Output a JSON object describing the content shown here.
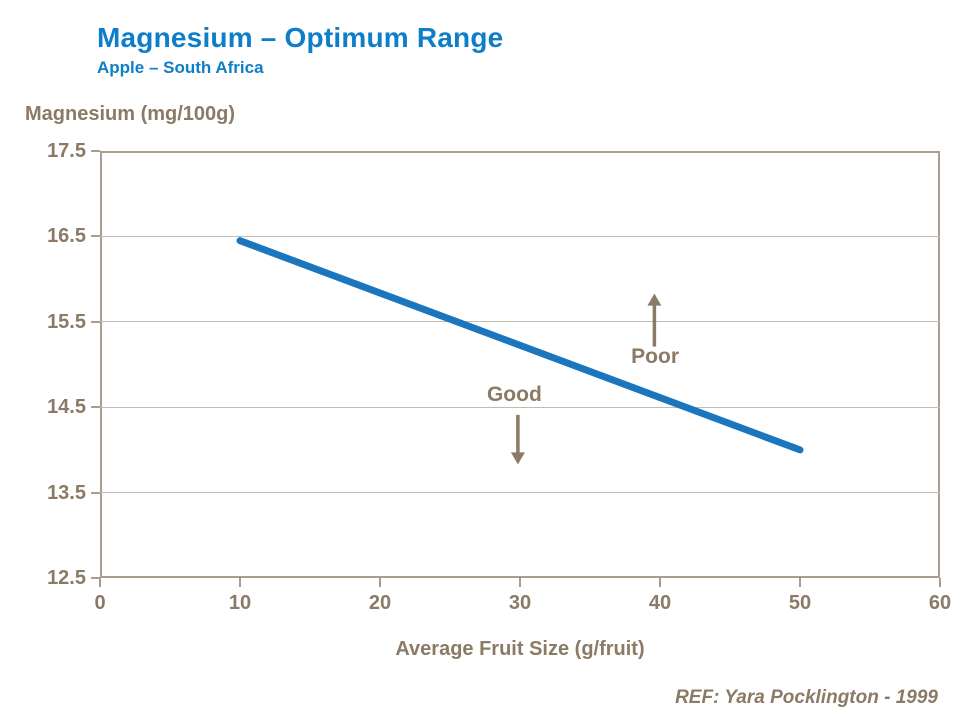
{
  "colors": {
    "title_blue": "#0e7ec8",
    "line_blue": "#1b76be",
    "taupe_text": "#8a7a66",
    "axis_frame": "#a89d8f",
    "gridline": "#c4bbae",
    "background": "#ffffff"
  },
  "chart_data": {
    "type": "line",
    "title": "Magnesium – Optimum Range",
    "subtitle": "Apple – South Africa",
    "ylabel": "Magnesium (mg/100g)",
    "xlabel": "Average Fruit Size (g/fruit)",
    "ref": "REF: Yara Pocklington - 1999",
    "xlim": [
      0,
      60
    ],
    "ylim": [
      12.5,
      17.5
    ],
    "x_ticks": [
      "0",
      "10",
      "20",
      "30",
      "40",
      "50",
      "60"
    ],
    "y_ticks": [
      "17.5",
      "16.5",
      "15.5",
      "14.5",
      "13.5",
      "12.5"
    ],
    "grid": "horizontal",
    "legend": "none",
    "series": [
      {
        "name": "optimum-magnesium-line",
        "color": "#1b76be",
        "points": [
          {
            "x": 10,
            "y": 16.45
          },
          {
            "x": 50,
            "y": 14.0
          }
        ]
      }
    ],
    "annotations": [
      {
        "label": "Good",
        "label_x": 29.6,
        "label_y": 14.64,
        "arrow_dir": "down",
        "arrow_x": 29.85,
        "arrow_from_y": 14.41,
        "arrow_to_y": 13.83
      },
      {
        "label": "Poor",
        "label_x": 39.65,
        "label_y": 15.09,
        "arrow_dir": "up",
        "arrow_x": 39.6,
        "arrow_from_y": 15.21,
        "arrow_to_y": 15.83
      }
    ]
  }
}
